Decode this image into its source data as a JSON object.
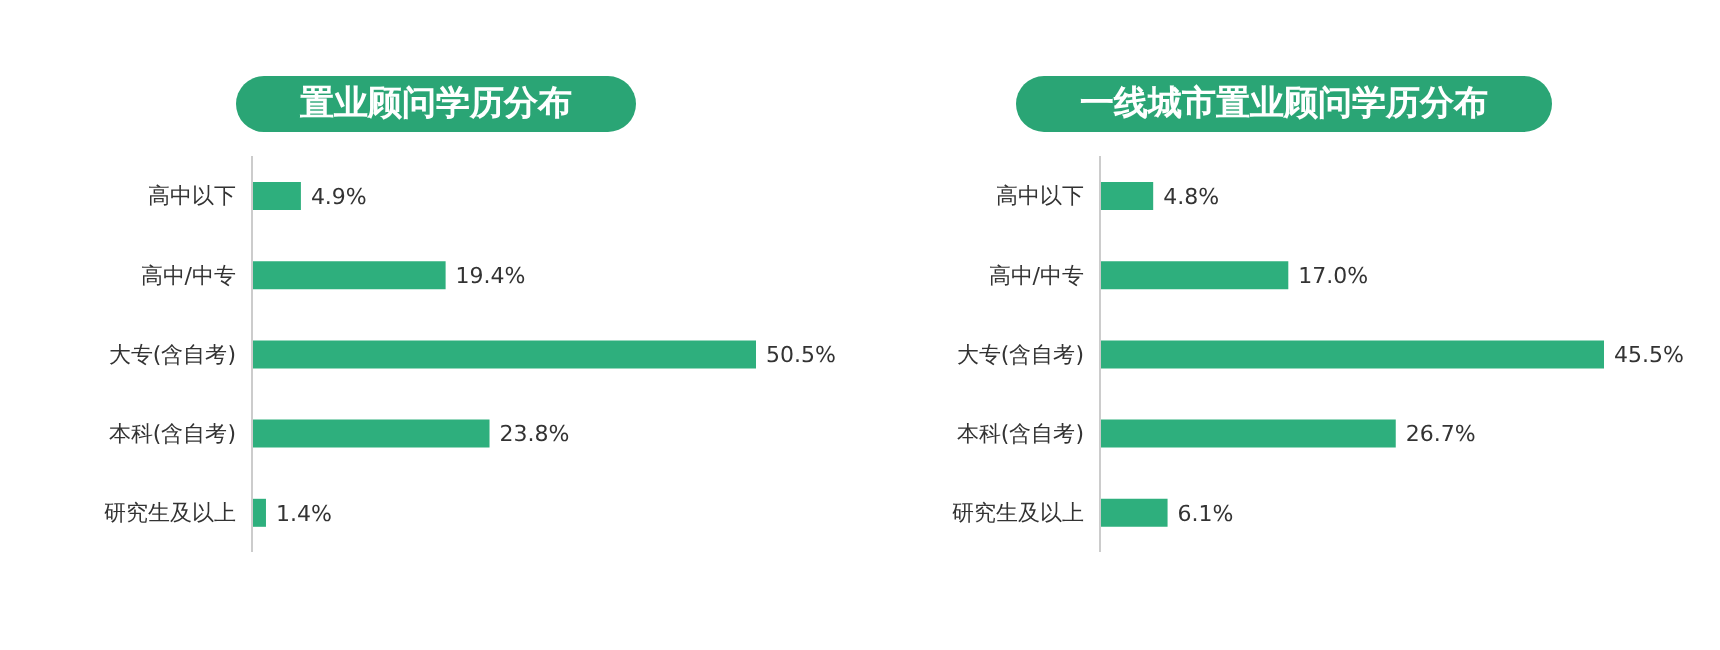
{
  "chart_data": [
    {
      "type": "bar",
      "orientation": "horizontal",
      "title": "置业顾问学历分布",
      "categories": [
        "高中以下",
        "高中/中专",
        "大专(含自考)",
        "本科(含自考)",
        "研究生及以上"
      ],
      "values": [
        4.9,
        19.4,
        50.5,
        23.8,
        1.4
      ],
      "value_labels": [
        "4.9%",
        "19.4%",
        "50.5%",
        "23.8%",
        "1.4%"
      ],
      "color": "#2eaf7d"
    },
    {
      "type": "bar",
      "orientation": "horizontal",
      "title": "一线城市置业顾问学历分布",
      "categories": [
        "高中以下",
        "高中/中专",
        "大专(含自考)",
        "本科(含自考)",
        "研究生及以上"
      ],
      "values": [
        4.8,
        17.0,
        45.5,
        26.7,
        6.1
      ],
      "value_labels": [
        "4.8%",
        "17.0%",
        "45.5%",
        "26.7%",
        "6.1%"
      ],
      "color": "#2eaf7d"
    }
  ]
}
